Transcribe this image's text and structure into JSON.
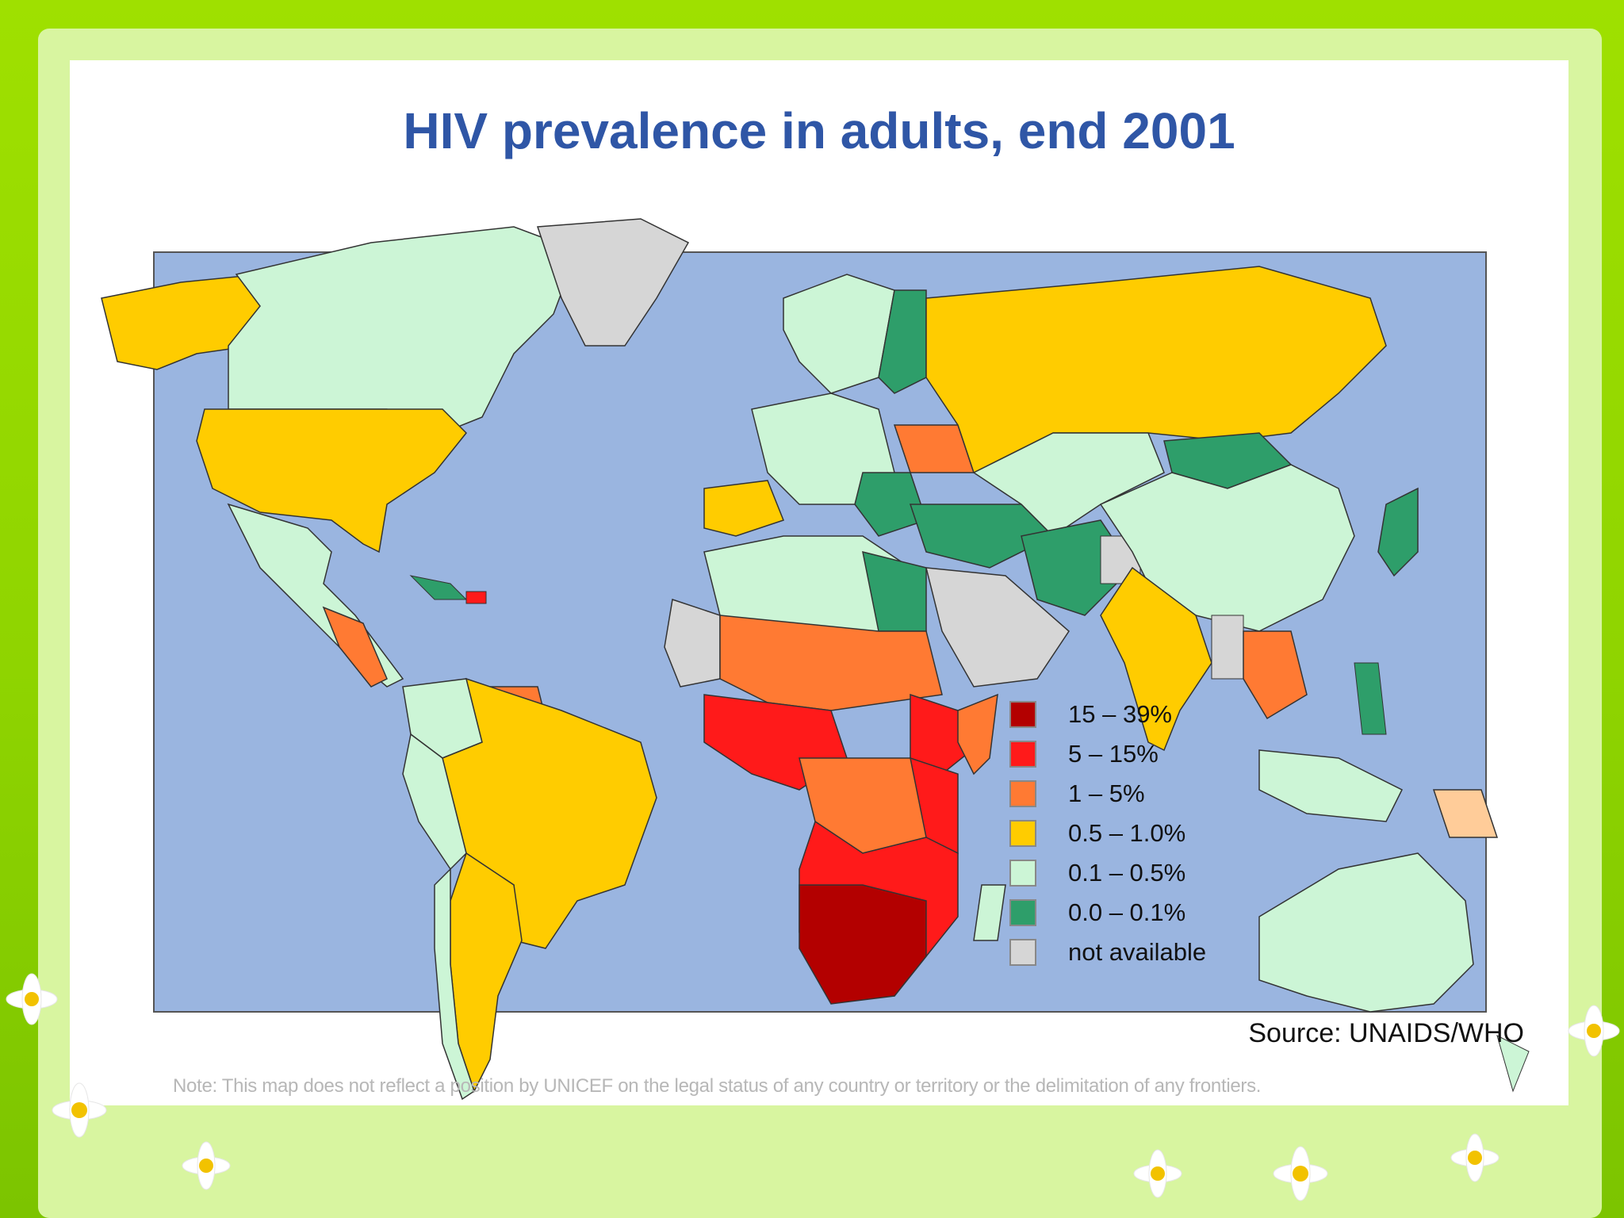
{
  "title": "HIV prevalence in adults, end 2001",
  "legend": [
    {
      "label": "15 – 39%",
      "color": "#b30000"
    },
    {
      "label": "5 – 15%",
      "color": "#ff1a1a"
    },
    {
      "label": "1 – 5%",
      "color": "#ff7a33"
    },
    {
      "label": "0.5 – 1.0%",
      "color": "#ffcc00"
    },
    {
      "label": "0.1 – 0.5%",
      "color": "#ccf5d6"
    },
    {
      "label": "0.0 – 0.1%",
      "color": "#2e9e6a"
    },
    {
      "label": "not available",
      "color": "#d6d6d6"
    }
  ],
  "source": "Source: UNAIDS/WHO",
  "note": "Note: This map does not reflect a position by UNICEF on the legal status of any country or territory or the delimitation of any frontiers.",
  "colors": {
    "ocean": "#9ab5e0",
    "background": "#8fd400",
    "title": "#2f56a6"
  }
}
